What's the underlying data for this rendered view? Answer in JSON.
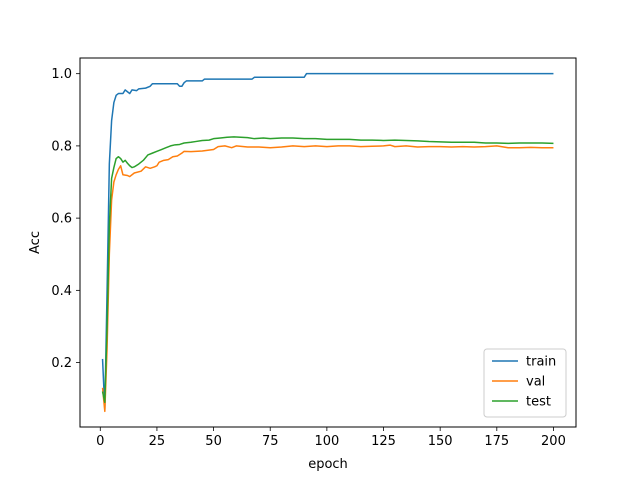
{
  "chart_data": {
    "type": "line",
    "title": "",
    "xlabel": "epoch",
    "ylabel": "Acc",
    "xlim": [
      -8.95,
      209.95
    ],
    "ylim": [
      0.0216,
      1.0434
    ],
    "xticks": [
      0,
      25,
      50,
      75,
      100,
      125,
      150,
      175,
      200
    ],
    "yticks": [
      0.2,
      0.4,
      0.6,
      0.8,
      1.0
    ],
    "ytick_labels": [
      "0.2",
      "0.4",
      "0.6",
      "0.8",
      "1.0"
    ],
    "grid": false,
    "legend_position": "lower-right",
    "series": [
      {
        "name": "train",
        "color": "#1f77b4",
        "points": [
          [
            1,
            0.21
          ],
          [
            2,
            0.07
          ],
          [
            3,
            0.4
          ],
          [
            4,
            0.75
          ],
          [
            5,
            0.87
          ],
          [
            6,
            0.92
          ],
          [
            7,
            0.94
          ],
          [
            8,
            0.945
          ],
          [
            10,
            0.945
          ],
          [
            11,
            0.955
          ],
          [
            12,
            0.95
          ],
          [
            13,
            0.945
          ],
          [
            14,
            0.955
          ],
          [
            16,
            0.953
          ],
          [
            17,
            0.958
          ],
          [
            20,
            0.96
          ],
          [
            22,
            0.965
          ],
          [
            23,
            0.972
          ],
          [
            34,
            0.972
          ],
          [
            35,
            0.965
          ],
          [
            36,
            0.965
          ],
          [
            37,
            0.975
          ],
          [
            38,
            0.98
          ],
          [
            45,
            0.98
          ],
          [
            46,
            0.985
          ],
          [
            67,
            0.985
          ],
          [
            68,
            0.99
          ],
          [
            90,
            0.99
          ],
          [
            91,
            1.0
          ],
          [
            200,
            1.0
          ]
        ]
      },
      {
        "name": "val",
        "color": "#ff7f0e",
        "points": [
          [
            1,
            0.13
          ],
          [
            2,
            0.065
          ],
          [
            3,
            0.24
          ],
          [
            4,
            0.5
          ],
          [
            5,
            0.65
          ],
          [
            6,
            0.7
          ],
          [
            7,
            0.72
          ],
          [
            8,
            0.735
          ],
          [
            9,
            0.745
          ],
          [
            10,
            0.72
          ],
          [
            12,
            0.718
          ],
          [
            13,
            0.715
          ],
          [
            15,
            0.725
          ],
          [
            18,
            0.73
          ],
          [
            20,
            0.742
          ],
          [
            22,
            0.738
          ],
          [
            24,
            0.742
          ],
          [
            25,
            0.745
          ],
          [
            26,
            0.755
          ],
          [
            28,
            0.76
          ],
          [
            30,
            0.762
          ],
          [
            32,
            0.77
          ],
          [
            34,
            0.772
          ],
          [
            36,
            0.78
          ],
          [
            37,
            0.785
          ],
          [
            40,
            0.784
          ],
          [
            45,
            0.786
          ],
          [
            50,
            0.79
          ],
          [
            52,
            0.798
          ],
          [
            55,
            0.8
          ],
          [
            58,
            0.795
          ],
          [
            60,
            0.8
          ],
          [
            65,
            0.797
          ],
          [
            70,
            0.797
          ],
          [
            75,
            0.795
          ],
          [
            80,
            0.797
          ],
          [
            85,
            0.8
          ],
          [
            90,
            0.798
          ],
          [
            95,
            0.8
          ],
          [
            100,
            0.798
          ],
          [
            105,
            0.8
          ],
          [
            110,
            0.8
          ],
          [
            115,
            0.798
          ],
          [
            120,
            0.799
          ],
          [
            125,
            0.8
          ],
          [
            128,
            0.802
          ],
          [
            130,
            0.798
          ],
          [
            135,
            0.8
          ],
          [
            140,
            0.797
          ],
          [
            145,
            0.798
          ],
          [
            150,
            0.798
          ],
          [
            155,
            0.797
          ],
          [
            160,
            0.798
          ],
          [
            165,
            0.797
          ],
          [
            170,
            0.798
          ],
          [
            175,
            0.8
          ],
          [
            180,
            0.795
          ],
          [
            185,
            0.795
          ],
          [
            190,
            0.796
          ],
          [
            195,
            0.795
          ],
          [
            200,
            0.795
          ]
        ]
      },
      {
        "name": "test",
        "color": "#2ca02c",
        "points": [
          [
            1,
            0.12
          ],
          [
            2,
            0.09
          ],
          [
            3,
            0.3
          ],
          [
            4,
            0.58
          ],
          [
            5,
            0.71
          ],
          [
            6,
            0.74
          ],
          [
            7,
            0.765
          ],
          [
            8,
            0.77
          ],
          [
            9,
            0.765
          ],
          [
            10,
            0.755
          ],
          [
            11,
            0.76
          ],
          [
            12,
            0.752
          ],
          [
            13,
            0.745
          ],
          [
            14,
            0.74
          ],
          [
            15,
            0.742
          ],
          [
            17,
            0.75
          ],
          [
            19,
            0.76
          ],
          [
            21,
            0.775
          ],
          [
            23,
            0.78
          ],
          [
            25,
            0.785
          ],
          [
            27,
            0.79
          ],
          [
            29,
            0.795
          ],
          [
            31,
            0.8
          ],
          [
            33,
            0.803
          ],
          [
            35,
            0.804
          ],
          [
            37,
            0.808
          ],
          [
            40,
            0.81
          ],
          [
            42,
            0.812
          ],
          [
            45,
            0.815
          ],
          [
            48,
            0.816
          ],
          [
            50,
            0.82
          ],
          [
            53,
            0.822
          ],
          [
            56,
            0.824
          ],
          [
            59,
            0.825
          ],
          [
            62,
            0.824
          ],
          [
            65,
            0.823
          ],
          [
            68,
            0.82
          ],
          [
            72,
            0.822
          ],
          [
            75,
            0.82
          ],
          [
            80,
            0.822
          ],
          [
            85,
            0.822
          ],
          [
            90,
            0.82
          ],
          [
            95,
            0.82
          ],
          [
            100,
            0.818
          ],
          [
            105,
            0.818
          ],
          [
            110,
            0.818
          ],
          [
            115,
            0.816
          ],
          [
            120,
            0.816
          ],
          [
            125,
            0.815
          ],
          [
            130,
            0.816
          ],
          [
            135,
            0.815
          ],
          [
            140,
            0.814
          ],
          [
            145,
            0.812
          ],
          [
            150,
            0.811
          ],
          [
            155,
            0.81
          ],
          [
            160,
            0.81
          ],
          [
            165,
            0.81
          ],
          [
            170,
            0.808
          ],
          [
            175,
            0.808
          ],
          [
            180,
            0.807
          ],
          [
            185,
            0.808
          ],
          [
            190,
            0.808
          ],
          [
            195,
            0.808
          ],
          [
            200,
            0.807
          ]
        ]
      }
    ]
  }
}
